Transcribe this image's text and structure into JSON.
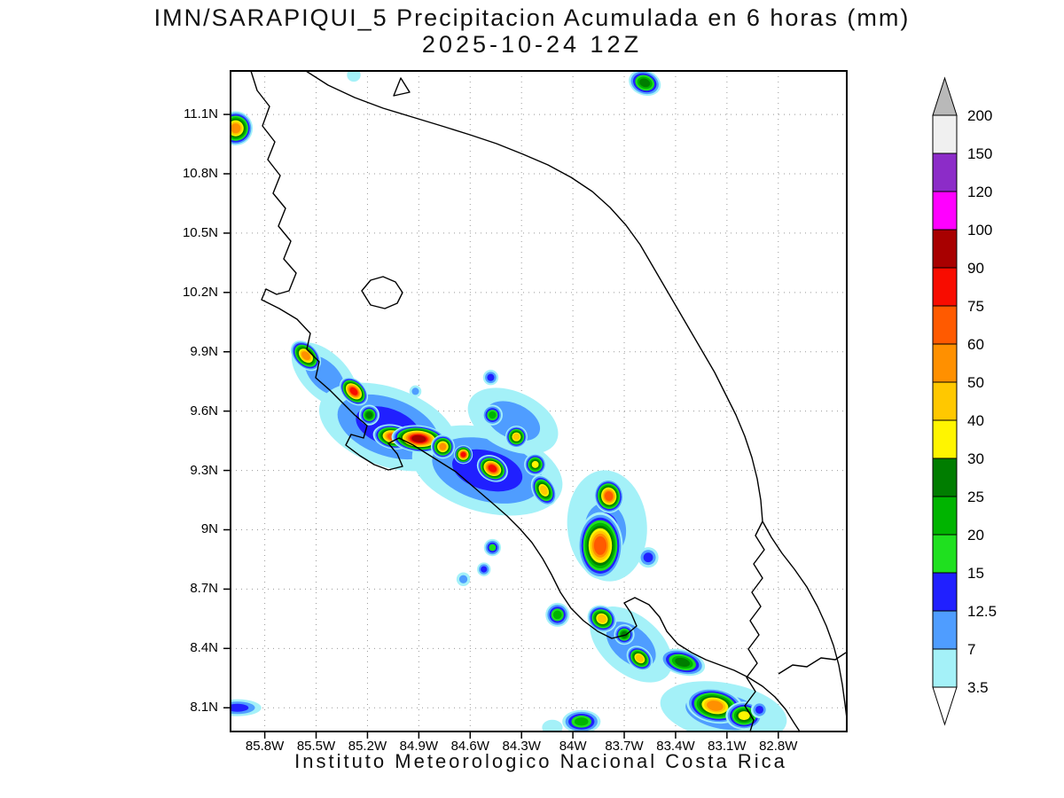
{
  "chart_data": {
    "type": "heatmap",
    "title": "IMN/SARAPIQUI_5 Precipitacion Acumulada en 6 horas (mm)",
    "subtitle": "2025-10-24 12Z",
    "footer": "Instituto Meteorologico Nacional Costa Rica",
    "units": "mm",
    "grid": "dotted",
    "legend_position": "right",
    "x_axis": {
      "ticks": [
        "85.8W",
        "85.5W",
        "85.2W",
        "84.9W",
        "84.6W",
        "84.3W",
        "84W",
        "83.7W",
        "83.4W",
        "83.1W",
        "82.8W"
      ],
      "values": [
        85.8,
        85.5,
        85.2,
        84.9,
        84.6,
        84.3,
        84.0,
        83.7,
        83.4,
        83.1,
        82.8
      ],
      "range_lon_w": [
        86.0,
        82.4
      ]
    },
    "y_axis": {
      "ticks": [
        "11.1N",
        "10.8N",
        "10.5N",
        "10.2N",
        "9.9N",
        "9.6N",
        "9.3N",
        "9N",
        "8.7N",
        "8.4N",
        "8.1N"
      ],
      "values": [
        11.1,
        10.8,
        10.5,
        10.2,
        9.9,
        9.6,
        9.3,
        9.0,
        8.7,
        8.4,
        8.1
      ],
      "range_lat": [
        11.32,
        7.98
      ]
    },
    "colorbar": {
      "levels": [
        3.5,
        7,
        12.5,
        15,
        20,
        25,
        30,
        40,
        50,
        60,
        75,
        90,
        100,
        120,
        150,
        200
      ],
      "colors": [
        "#a4f1f8",
        "#4f9dff",
        "#2020ff",
        "#1fe01f",
        "#00b400",
        "#007d00",
        "#fff500",
        "#ffc800",
        "#ff9000",
        "#ff5a00",
        "#f80c00",
        "#a80000",
        "#ff00ff",
        "#8c2cc8",
        "#f0f0f0"
      ],
      "under": "#ffffff",
      "over": "#b9b9b9"
    },
    "coastline_paths": [
      "M 23,0 L 30,22 L 44,40 L 36,62 L 50,80 L 42,100 L 56,118 L 48,138 L 62,155 L 54,175 L 68,192 L 60,212 L 74,228 L 66,248 L 52,252 L 40,246 L 35,258 L 55,268 L 75,280 L 90,296 L 86,314 L 100,328 L 96,346 L 112,360 L 126,374 L 140,388 L 154,400 L 150,414 L 136,410 L 130,422 L 146,434 L 162,444 L 178,450 L 194,446 L 188,432 L 178,420 L 190,414 L 206,422 L 222,432 L 238,442 L 254,452 L 268,464 L 282,476 L 296,488 L 312,502 L 326,516 L 340,532 L 352,550 L 362,568 L 372,588 L 384,606 L 398,620 L 414,632 L 430,640 L 446,636 L 458,626 L 452,612 L 444,600 L 456,594 L 472,602 L 484,616 L 492,632 L 504,646 L 520,656 L 536,664 L 552,670 L 568,676 L 584,684 L 600,694 L 614,706 L 626,720 L 636,736 L 642,745",
      "M 85,0 L 110,16 L 140,30 L 172,42 L 205,52 L 238,62 L 270,72 L 300,82 L 330,94 L 358,106 L 384,120 L 408,136 L 428,154 L 446,174 L 462,196 L 476,220 L 490,244 L 504,268 L 518,292 L 532,316 L 546,340 L 558,364 L 570,388 L 580,412 L 588,436 L 594,460 L 598,484 L 600,508 L 610,526 L 622,544 L 636,562 L 650,582 L 662,604 L 672,626 L 680,648 L 686,670 L 690,692 L 693,714 L 695,730",
      "M 600,508 L 592,524 L 602,540 L 590,556 L 600,572 L 588,588 L 598,604 L 586,620 L 596,636 L 584,652 L 594,668 L 582,684 L 592,700 L 580,716 L 590,732 L 586,745",
      "M 184,28 L 192,8 L 202,24 Z",
      "M 148,248 L 158,236 L 172,232 L 186,238 L 194,250 L 188,262 L 174,268 L 158,264 Z",
      "M 618,680 L 634,670 L 650,672 L 666,662 L 682,664 L 694,656"
    ],
    "cells": [
      {
        "lon_w": 85.45,
        "lat": 9.78,
        "peak_mm": 7,
        "size_deg": 0.16,
        "elong": 1.5,
        "rot": 45
      },
      {
        "lon_w": 85.08,
        "lat": 9.52,
        "peak_mm": 12.5,
        "size_deg": 0.28,
        "elong": 1.5,
        "rot": 20
      },
      {
        "lon_w": 84.5,
        "lat": 9.3,
        "peak_mm": 12.5,
        "size_deg": 0.3,
        "elong": 1.5,
        "rot": 15
      },
      {
        "lon_w": 84.35,
        "lat": 9.55,
        "peak_mm": 7,
        "size_deg": 0.2,
        "elong": 1.4,
        "rot": 25
      },
      {
        "lon_w": 83.8,
        "lat": 9.02,
        "peak_mm": 7,
        "size_deg": 0.26,
        "elong": 1.25,
        "rot": 85
      },
      {
        "lon_w": 83.81,
        "lat": 9.0,
        "peak_mm": 12.5,
        "size_deg": 0.18,
        "elong": 1.2,
        "rot": 85
      },
      {
        "lon_w": 83.66,
        "lat": 8.42,
        "peak_mm": 7,
        "size_deg": 0.2,
        "elong": 1.4,
        "rot": 40
      },
      {
        "lon_w": 83.12,
        "lat": 8.08,
        "peak_mm": 7,
        "size_deg": 0.22,
        "elong": 1.7,
        "rot": 10
      },
      {
        "lon_w": 85.97,
        "lat": 11.03,
        "peak_mm": 50,
        "size_deg": 0.1,
        "elong": 1.0,
        "rot": 0
      },
      {
        "lon_w": 85.28,
        "lat": 11.3,
        "peak_mm": 3.5,
        "size_deg": 0.04,
        "elong": 1.0,
        "rot": 0
      },
      {
        "lon_w": 83.58,
        "lat": 11.26,
        "peak_mm": 25,
        "size_deg": 0.08,
        "elong": 1.2,
        "rot": 20
      },
      {
        "lon_w": 84.48,
        "lat": 9.77,
        "peak_mm": 12.5,
        "size_deg": 0.045,
        "elong": 1.0,
        "rot": 0
      },
      {
        "lon_w": 84.92,
        "lat": 9.7,
        "peak_mm": 7,
        "size_deg": 0.035,
        "elong": 1.0,
        "rot": 0
      },
      {
        "lon_w": 85.56,
        "lat": 9.88,
        "peak_mm": 50,
        "size_deg": 0.08,
        "elong": 1.3,
        "rot": 45
      },
      {
        "lon_w": 85.28,
        "lat": 9.7,
        "peak_mm": 75,
        "size_deg": 0.075,
        "elong": 1.3,
        "rot": 45
      },
      {
        "lon_w": 85.19,
        "lat": 9.58,
        "peak_mm": 25,
        "size_deg": 0.06,
        "elong": 1.0,
        "rot": 0
      },
      {
        "lon_w": 85.05,
        "lat": 9.47,
        "peak_mm": 60,
        "size_deg": 0.085,
        "elong": 1.4,
        "rot": 10
      },
      {
        "lon_w": 84.9,
        "lat": 9.46,
        "peak_mm": 90,
        "size_deg": 0.1,
        "elong": 1.6,
        "rot": 5
      },
      {
        "lon_w": 84.76,
        "lat": 9.42,
        "peak_mm": 50,
        "size_deg": 0.07,
        "elong": 1.0,
        "rot": 0
      },
      {
        "lon_w": 84.64,
        "lat": 9.38,
        "peak_mm": 75,
        "size_deg": 0.055,
        "elong": 1.0,
        "rot": 0
      },
      {
        "lon_w": 84.47,
        "lat": 9.31,
        "peak_mm": 75,
        "size_deg": 0.08,
        "elong": 1.2,
        "rot": 30
      },
      {
        "lon_w": 84.47,
        "lat": 9.58,
        "peak_mm": 20,
        "size_deg": 0.06,
        "elong": 1.0,
        "rot": 0
      },
      {
        "lon_w": 84.33,
        "lat": 9.47,
        "peak_mm": 40,
        "size_deg": 0.065,
        "elong": 1.0,
        "rot": 0
      },
      {
        "lon_w": 84.22,
        "lat": 9.33,
        "peak_mm": 30,
        "size_deg": 0.065,
        "elong": 1.0,
        "rot": 0
      },
      {
        "lon_w": 84.17,
        "lat": 9.2,
        "peak_mm": 40,
        "size_deg": 0.075,
        "elong": 1.3,
        "rot": 60
      },
      {
        "lon_w": 83.79,
        "lat": 9.17,
        "peak_mm": 60,
        "size_deg": 0.09,
        "elong": 1.1,
        "rot": 80
      },
      {
        "lon_w": 83.84,
        "lat": 8.92,
        "peak_mm": 60,
        "size_deg": 0.15,
        "elong": 1.3,
        "rot": 90
      },
      {
        "lon_w": 83.56,
        "lat": 8.86,
        "peak_mm": 12.5,
        "size_deg": 0.06,
        "elong": 1.0,
        "rot": 0
      },
      {
        "lon_w": 84.47,
        "lat": 8.91,
        "peak_mm": 15,
        "size_deg": 0.05,
        "elong": 1.0,
        "rot": 0
      },
      {
        "lon_w": 84.52,
        "lat": 8.8,
        "peak_mm": 12.5,
        "size_deg": 0.04,
        "elong": 1.0,
        "rot": 0
      },
      {
        "lon_w": 84.64,
        "lat": 8.75,
        "peak_mm": 7,
        "size_deg": 0.04,
        "elong": 1.0,
        "rot": 0
      },
      {
        "lon_w": 84.09,
        "lat": 8.57,
        "peak_mm": 20,
        "size_deg": 0.07,
        "elong": 1.0,
        "rot": 0
      },
      {
        "lon_w": 83.83,
        "lat": 8.55,
        "peak_mm": 40,
        "size_deg": 0.08,
        "elong": 1.1,
        "rot": 30
      },
      {
        "lon_w": 83.7,
        "lat": 8.47,
        "peak_mm": 25,
        "size_deg": 0.06,
        "elong": 1.0,
        "rot": 0
      },
      {
        "lon_w": 83.61,
        "lat": 8.35,
        "peak_mm": 40,
        "size_deg": 0.07,
        "elong": 1.2,
        "rot": 40
      },
      {
        "lon_w": 83.36,
        "lat": 8.33,
        "peak_mm": 25,
        "size_deg": 0.09,
        "elong": 1.5,
        "rot": 15
      },
      {
        "lon_w": 83.17,
        "lat": 8.11,
        "peak_mm": 50,
        "size_deg": 0.12,
        "elong": 1.4,
        "rot": 10
      },
      {
        "lon_w": 83.0,
        "lat": 8.06,
        "peak_mm": 30,
        "size_deg": 0.09,
        "elong": 1.2,
        "rot": 0
      },
      {
        "lon_w": 82.91,
        "lat": 8.09,
        "peak_mm": 12.5,
        "size_deg": 0.05,
        "elong": 1.0,
        "rot": 0
      },
      {
        "lon_w": 85.96,
        "lat": 8.1,
        "peak_mm": 12.5,
        "size_deg": 0.07,
        "elong": 2.0,
        "rot": 0
      },
      {
        "lon_w": 83.95,
        "lat": 8.03,
        "peak_mm": 20,
        "size_deg": 0.08,
        "elong": 1.4,
        "rot": 0
      },
      {
        "lon_w": 84.12,
        "lat": 8.0,
        "peak_mm": 3.5,
        "size_deg": 0.05,
        "elong": 1.2,
        "rot": 0
      }
    ]
  }
}
